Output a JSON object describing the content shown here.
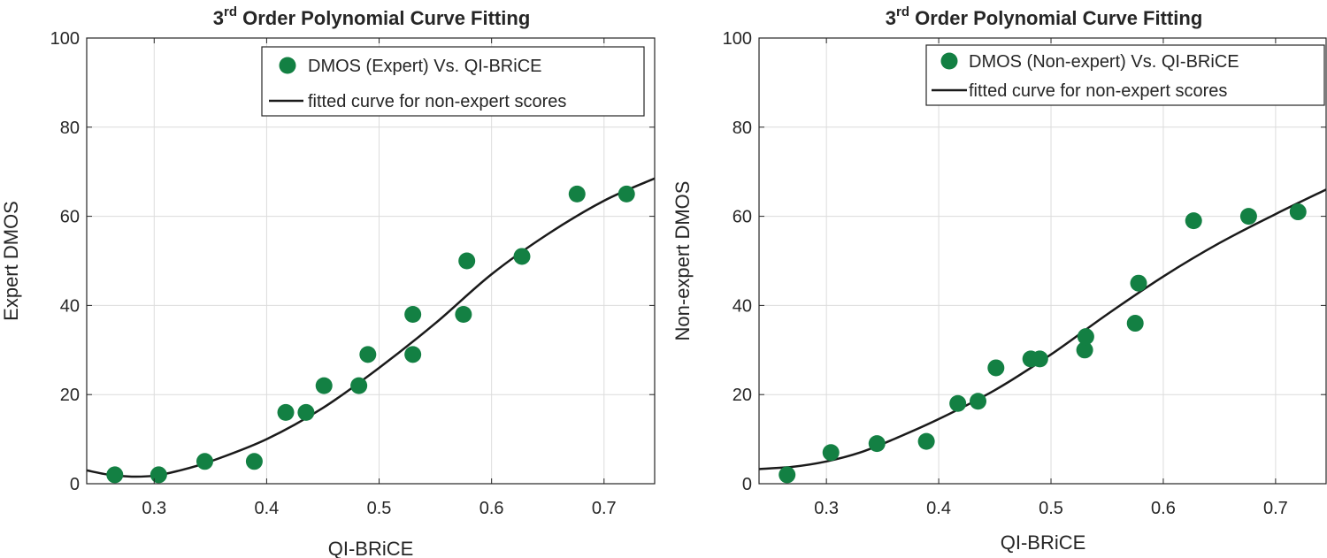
{
  "colors": {
    "marker": "#138043",
    "curve": "#1a1a1a",
    "grid": "#dcdcdc",
    "axis": "#262626"
  },
  "chart_data": [
    {
      "type": "scatter",
      "title": {
        "pre": "3",
        "sup": "rd",
        "post": " Order Polynomial Curve Fitting"
      },
      "xlabel": "QI-BRiCE",
      "ylabel": "Expert DMOS",
      "xlim": [
        0.24,
        0.745
      ],
      "ylim": [
        0,
        100
      ],
      "xticks": [
        0.3,
        0.4,
        0.5,
        0.6,
        0.7
      ],
      "xtick_labels": [
        "0.3",
        "0.4",
        "0.5",
        "0.6",
        "0.7"
      ],
      "yticks": [
        0,
        20,
        40,
        60,
        80,
        100
      ],
      "ytick_labels": [
        "0",
        "20",
        "40",
        "60",
        "80",
        "100"
      ],
      "grid": true,
      "legend_position": "top-right",
      "series": [
        {
          "name": "DMOS (Expert) Vs. QI-BRiCE",
          "kind": "markers",
          "x": [
            0.265,
            0.304,
            0.345,
            0.389,
            0.417,
            0.435,
            0.451,
            0.482,
            0.49,
            0.53,
            0.53,
            0.575,
            0.578,
            0.627,
            0.676,
            0.72
          ],
          "y": [
            2,
            2,
            5,
            5,
            16,
            16,
            22,
            22,
            29,
            29,
            38,
            38,
            50,
            51,
            65,
            65
          ]
        },
        {
          "name": "fitted curve for non-expert scores",
          "kind": "line",
          "x": [
            0.24,
            0.26,
            0.28,
            0.3,
            0.32,
            0.35,
            0.4,
            0.45,
            0.5,
            0.55,
            0.6,
            0.65,
            0.7,
            0.745
          ],
          "y": [
            3,
            2,
            1.6,
            1.8,
            2.8,
            5,
            10,
            17,
            26,
            36,
            47,
            56,
            63.5,
            68.5
          ]
        }
      ]
    },
    {
      "type": "scatter",
      "title": {
        "pre": "3",
        "sup": "rd",
        "post": " Order Polynomial Curve Fitting"
      },
      "xlabel": "QI-BRiCE",
      "ylabel": "Non-expert DMOS",
      "xlim": [
        0.24,
        0.745
      ],
      "ylim": [
        0,
        100
      ],
      "xticks": [
        0.3,
        0.4,
        0.5,
        0.6,
        0.7
      ],
      "xtick_labels": [
        "0.3",
        "0.4",
        "0.5",
        "0.6",
        "0.7"
      ],
      "yticks": [
        0,
        20,
        40,
        60,
        80,
        100
      ],
      "ytick_labels": [
        "0",
        "20",
        "40",
        "60",
        "80",
        "100"
      ],
      "grid": true,
      "legend_position": "top-right",
      "series": [
        {
          "name": "DMOS (Non-expert) Vs. QI-BRiCE",
          "kind": "markers",
          "x": [
            0.265,
            0.304,
            0.345,
            0.389,
            0.417,
            0.435,
            0.451,
            0.482,
            0.49,
            0.53,
            0.531,
            0.575,
            0.578,
            0.627,
            0.676,
            0.72
          ],
          "y": [
            2,
            7,
            9,
            9.5,
            18,
            18.5,
            26,
            28,
            28,
            30,
            33,
            36,
            45,
            59,
            60,
            61
          ]
        },
        {
          "name": "fitted curve for non-expert scores",
          "kind": "line",
          "x": [
            0.24,
            0.27,
            0.3,
            0.33,
            0.36,
            0.4,
            0.45,
            0.5,
            0.55,
            0.6,
            0.65,
            0.7,
            0.745
          ],
          "y": [
            3.3,
            3.8,
            5,
            7,
            10,
            14.5,
            21,
            29,
            38,
            46.5,
            54,
            60.5,
            66
          ]
        }
      ]
    }
  ]
}
